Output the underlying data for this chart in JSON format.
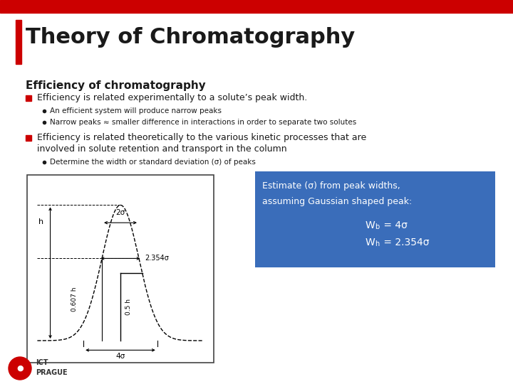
{
  "bg_color": "#ffffff",
  "header_bar_color": "#cc0000",
  "red_bar_color": "#cc0000",
  "title_text": "Theory of Chromatography",
  "title_color": "#1a1a1a",
  "title_fontsize": 22,
  "section_title": "Efficiency of chromatography",
  "section_fontsize": 11,
  "bullet1_text": "Efficiency is related experimentally to a solute’s peak width.",
  "sub1a": "An efficient system will produce narrow peaks",
  "sub1b": "Narrow peaks ≈ smaller difference in interactions in order to separate two solutes",
  "bullet2_line1": "Efficiency is related theoretically to the various kinetic processes that are",
  "bullet2_line2": "involved in solute retention and transport in the column",
  "sub2a": "Determine the width or standard deviation (σ) of peaks",
  "bullet_color": "#cc0000",
  "text_color": "#1a1a1a",
  "box_bg_color": "#3a6dba",
  "box_text_color": "#ffffff",
  "box_line1": "Estimate (σ) from peak widths,",
  "box_line2": "assuming Gaussian shaped peak:",
  "box_line3_pre": "W",
  "box_line3_sub": "b",
  "box_line3_post": " = 4σ",
  "box_line4_pre": "W",
  "box_line4_sub": "h",
  "box_line4_post": " = 2.354σ",
  "footer_red_color": "#cc0000"
}
